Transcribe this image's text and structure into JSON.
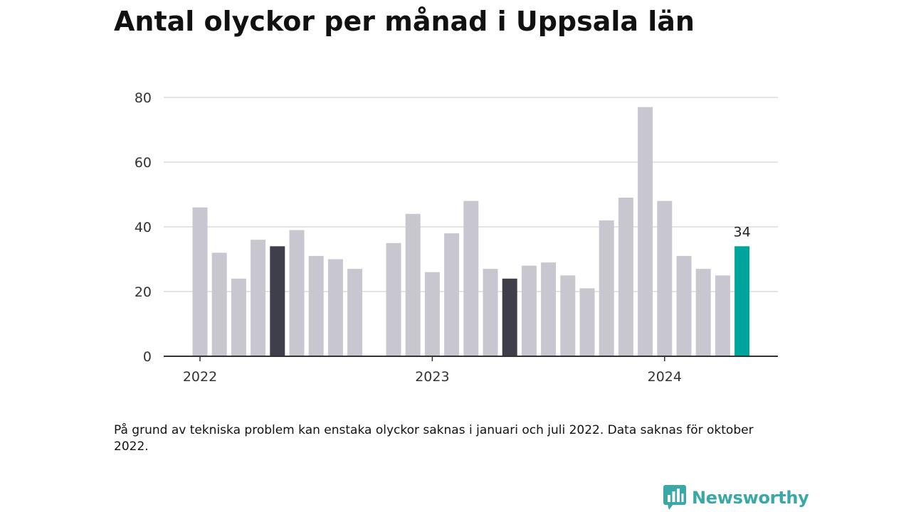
{
  "title": "Antal olyckor per månad i Uppsala län",
  "note": "På grund av tekniska problem kan enstaka olyckor saknas i januari och juli 2022. Data saknas för oktober 2022.",
  "brand": {
    "name": "Newsworthy",
    "icon": "newsworthy-logo-icon"
  },
  "colors": {
    "bar_default": "#c8c7d0",
    "bar_same_month": "#3f3e4b",
    "bar_latest": "#00a49b",
    "gridline": "#dcdcdc",
    "axis": "#333333",
    "brand": "#3aa8a6"
  },
  "chart_data": {
    "type": "bar",
    "title": "Antal olyckor per månad i Uppsala län",
    "xlabel": "",
    "ylabel": "",
    "ylim": [
      0,
      80
    ],
    "yticks": [
      0,
      20,
      40,
      60,
      80
    ],
    "grid": true,
    "legend": "none",
    "x_tick_labels": [
      {
        "label": "2022",
        "category": "2022-01"
      },
      {
        "label": "2023",
        "category": "2023-01"
      },
      {
        "label": "2024",
        "category": "2024-01"
      }
    ],
    "categories": [
      "2022-01",
      "2022-02",
      "2022-03",
      "2022-04",
      "2022-05",
      "2022-06",
      "2022-07",
      "2022-08",
      "2022-09",
      "2022-10",
      "2022-11",
      "2022-12",
      "2023-01",
      "2023-02",
      "2023-03",
      "2023-04",
      "2023-05",
      "2023-06",
      "2023-07",
      "2023-08",
      "2023-09",
      "2023-10",
      "2023-11",
      "2023-12",
      "2024-01",
      "2024-02",
      "2024-03",
      "2024-04",
      "2024-05"
    ],
    "values": [
      46,
      32,
      24,
      36,
      34,
      39,
      31,
      30,
      27,
      null,
      35,
      44,
      26,
      38,
      48,
      27,
      24,
      28,
      29,
      25,
      21,
      42,
      49,
      77,
      48,
      31,
      27,
      25,
      34
    ],
    "highlighted": [
      {
        "category": "2022-05",
        "style": "same_month"
      },
      {
        "category": "2023-05",
        "style": "same_month"
      },
      {
        "category": "2024-05",
        "style": "latest"
      }
    ],
    "data_labels": [
      {
        "category": "2024-05",
        "text": "34"
      }
    ]
  }
}
